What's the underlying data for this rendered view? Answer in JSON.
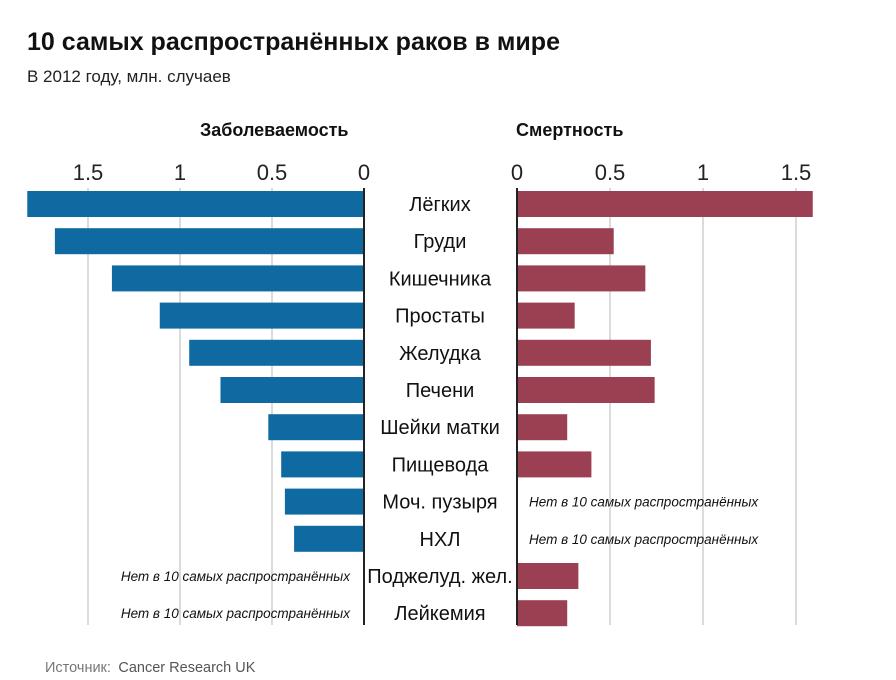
{
  "chart_data": {
    "type": "bar",
    "title": "10 самых распространённых раков в мире",
    "subtitle": "В 2012 году, млн. случаев",
    "categories": [
      "Лёгких",
      "Груди",
      "Кишечника",
      "Простаты",
      "Желудка",
      "Печени",
      "Шейки матки",
      "Пищевода",
      "Моч. пузыря",
      "НХЛ",
      "Поджелуд. жел.",
      "Лейкемия"
    ],
    "series": [
      {
        "name": "Заболеваемость",
        "values": [
          1.83,
          1.68,
          1.37,
          1.11,
          0.95,
          0.78,
          0.52,
          0.45,
          0.43,
          0.38,
          null,
          null
        ],
        "color": "#0e6aa0",
        "ticks": [
          1.5,
          1,
          0.5,
          0
        ],
        "tick_labels": [
          "1.5",
          "1",
          "0.5",
          "0"
        ],
        "range": [
          0,
          1.85
        ]
      },
      {
        "name": "Смертность",
        "values": [
          1.59,
          0.52,
          0.69,
          0.31,
          0.72,
          0.74,
          0.27,
          0.4,
          null,
          null,
          0.33,
          0.27
        ],
        "color": "#9b3f52",
        "ticks": [
          0,
          0.5,
          1,
          1.5
        ],
        "tick_labels": [
          "0",
          "0.5",
          "1",
          "1.5"
        ],
        "range": [
          0,
          1.6
        ]
      }
    ],
    "missing_label": "Нет в 10 самых распространённых",
    "gridlines": true
  },
  "source": {
    "label": "Источник:",
    "value": "Cancer Research UK"
  }
}
